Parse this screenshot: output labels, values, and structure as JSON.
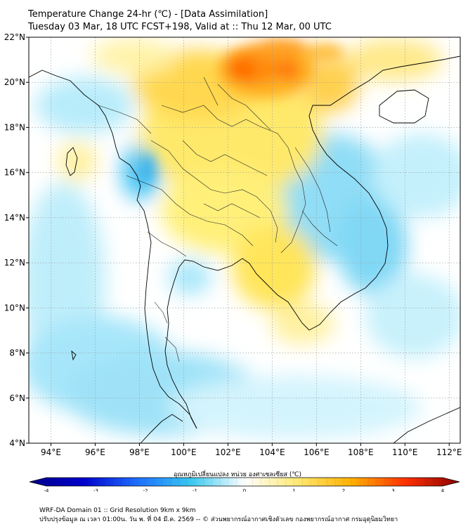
{
  "header": {
    "title": "Temperature Change 24-hr (℃) - [Data Assimilation]",
    "subtitle": "Tuesday 03 Mar, 18 UTC FCST+198, Valid at :: Thu 12 Mar, 00 UTC"
  },
  "map": {
    "lat_range": [
      4,
      22
    ],
    "lon_range": [
      93,
      112.5
    ],
    "lat_ticks": [
      "4°N",
      "6°N",
      "8°N",
      "10°N",
      "12°N",
      "14°N",
      "16°N",
      "18°N",
      "20°N",
      "22°N"
    ],
    "lon_ticks": [
      "94°E",
      "96°E",
      "98°E",
      "100°E",
      "102°E",
      "104°E",
      "106°E",
      "108°E",
      "110°E",
      "112°E"
    ],
    "gridlines": true,
    "field": "24-hr temperature change",
    "colors": {
      "cold_strong": "#00008b",
      "cold": "#1e90ff",
      "cool": "#7fd8f0",
      "neutral": "#ffffff",
      "warm": "#ffe24a",
      "hot": "#ff8c00",
      "hot_strong": "#8b0000"
    }
  },
  "colorbar": {
    "label": "อุณหภูมิเปลี่ยนแปลง หน่วย องศาเซลเซียส (℃)",
    "min": -4,
    "max": 4,
    "tick_labels": [
      "-4",
      "-3",
      "-2",
      "-1",
      "0",
      "1",
      "2",
      "3",
      "4"
    ]
  },
  "footer": {
    "line1": "WRF-DA Domain 01 :: Grid Resolution 9km x 9km",
    "line2": "ปรับปรุงข้อมูล ณ เวลา 01:00น. วัน พ. ที่ 04 มี.ค. 2569 -- © ส่วนพยากรณ์อากาศเชิงตัวเลข กองพยากรณ์อากาศ กรมอุตุนิยมวิทยา"
  }
}
